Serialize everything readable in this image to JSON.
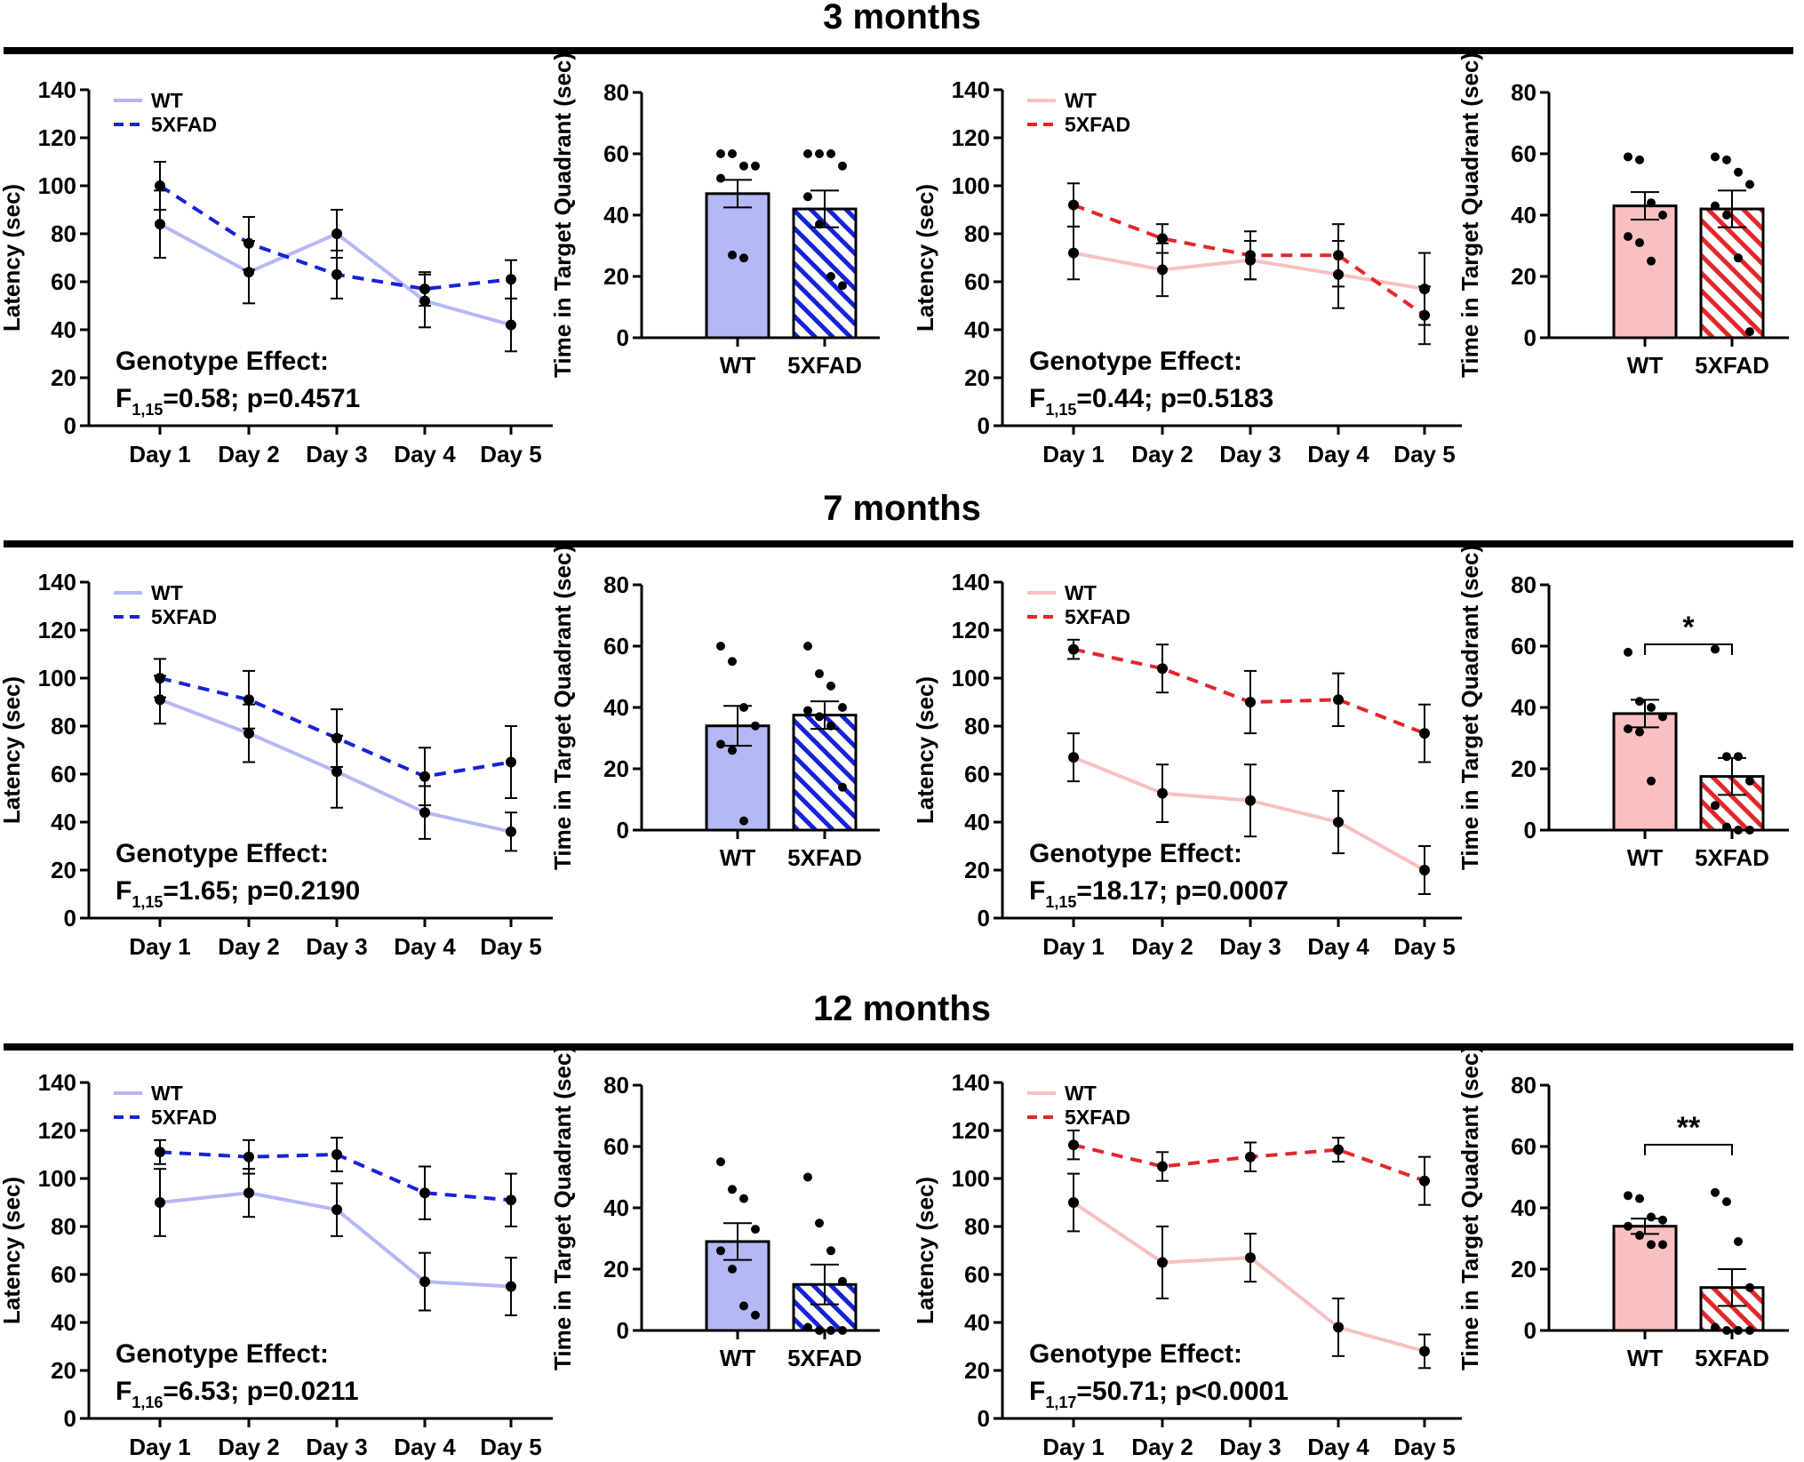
{
  "colors": {
    "blue_wt": "#b4b8f5",
    "blue_5xfad": "#1622d6",
    "red_wt": "#f8c0c0",
    "red_5xfad": "#e3262b",
    "point": "#000000"
  },
  "rows": [
    {
      "title": "3 months"
    },
    {
      "title": "7 months"
    },
    {
      "title": "12 months"
    }
  ],
  "chart_data": [
    {
      "type": "line",
      "row": 0,
      "col": 0,
      "group": "blue",
      "ylabel": "Latency (sec)",
      "ylim": [
        0,
        140
      ],
      "yticks": [
        "0",
        "20",
        "40",
        "60",
        "80",
        "100",
        "120",
        "140"
      ],
      "categories": [
        "Day 1",
        "Day 2",
        "Day 3",
        "Day 4",
        "Day 5"
      ],
      "series": [
        {
          "name": "WT",
          "values": [
            84,
            64,
            80,
            52,
            42
          ],
          "errors": [
            14,
            13,
            10,
            11,
            11
          ]
        },
        {
          "name": "5XFAD",
          "values": [
            100,
            76,
            63,
            57,
            61
          ],
          "errors": [
            10,
            11,
            10,
            7,
            8
          ]
        }
      ],
      "stat_line1": "Genotype Effect:",
      "stat_F": "F",
      "stat_sub": "1,15",
      "stat_rest": "=0.58; p=0.4571"
    },
    {
      "type": "bar",
      "row": 0,
      "col": 1,
      "group": "blue",
      "ylabel": "Time in Target Quadrant (sec)",
      "ylim": [
        0,
        80
      ],
      "yticks": [
        "0",
        "20",
        "40",
        "60",
        "80"
      ],
      "categories": [
        "WT",
        "5XFAD"
      ],
      "values": [
        47,
        42
      ],
      "errors": [
        4.5,
        6
      ],
      "points": [
        [
          60,
          60,
          56,
          56,
          52,
          27,
          26
        ],
        [
          60,
          60,
          60,
          56,
          46,
          37,
          20,
          17
        ]
      ],
      "significance": null
    },
    {
      "type": "line",
      "row": 0,
      "col": 2,
      "group": "red",
      "ylabel": "Latency (sec)",
      "ylim": [
        0,
        140
      ],
      "yticks": [
        "0",
        "20",
        "40",
        "60",
        "80",
        "100",
        "120",
        "140"
      ],
      "categories": [
        "Day 1",
        "Day 2",
        "Day 3",
        "Day 4",
        "Day 5"
      ],
      "series": [
        {
          "name": "WT",
          "values": [
            72,
            65,
            69,
            63,
            57
          ],
          "errors": [
            11,
            11,
            8,
            14,
            15
          ]
        },
        {
          "name": "5XFAD",
          "values": [
            92,
            78,
            71,
            71,
            46
          ],
          "errors": [
            9,
            6,
            10,
            13,
            12
          ]
        }
      ],
      "stat_line1": "Genotype Effect:",
      "stat_F": "F",
      "stat_sub": "1,15",
      "stat_rest": "=0.44; p=0.5183"
    },
    {
      "type": "bar",
      "row": 0,
      "col": 3,
      "group": "red",
      "ylabel": "Time in Target Quadrant (sec)",
      "ylim": [
        0,
        80
      ],
      "yticks": [
        "0",
        "20",
        "40",
        "60",
        "80"
      ],
      "categories": [
        "WT",
        "5XFAD"
      ],
      "values": [
        43,
        42
      ],
      "errors": [
        4.5,
        6
      ],
      "points": [
        [
          59,
          58,
          44,
          40,
          33,
          31,
          25
        ],
        [
          59,
          58,
          54,
          50,
          43,
          40,
          26,
          2
        ]
      ],
      "significance": null
    },
    {
      "type": "line",
      "row": 1,
      "col": 0,
      "group": "blue",
      "ylabel": "Latency (sec)",
      "ylim": [
        0,
        140
      ],
      "yticks": [
        "0",
        "20",
        "40",
        "60",
        "80",
        "100",
        "120",
        "140"
      ],
      "categories": [
        "Day 1",
        "Day 2",
        "Day 3",
        "Day 4",
        "Day 5"
      ],
      "series": [
        {
          "name": "WT",
          "values": [
            91,
            77,
            61,
            44,
            36
          ],
          "errors": [
            10,
            12,
            15,
            11,
            8
          ]
        },
        {
          "name": "5XFAD",
          "values": [
            100,
            91,
            75,
            59,
            65
          ],
          "errors": [
            8,
            12,
            12,
            12,
            15
          ]
        }
      ],
      "stat_line1": "Genotype Effect:",
      "stat_F": "F",
      "stat_sub": "1,15",
      "stat_rest": "=1.65; p=0.2190"
    },
    {
      "type": "bar",
      "row": 1,
      "col": 1,
      "group": "blue",
      "ylabel": "Time in Target Quadrant (sec)",
      "ylim": [
        0,
        80
      ],
      "yticks": [
        "0",
        "20",
        "40",
        "60",
        "80"
      ],
      "categories": [
        "WT",
        "5XFAD"
      ],
      "values": [
        34,
        37.5
      ],
      "errors": [
        6.5,
        4.5
      ],
      "points": [
        [
          60,
          55,
          40,
          34,
          28,
          26,
          3
        ],
        [
          60,
          51,
          47,
          40,
          39,
          37,
          34,
          14
        ]
      ],
      "significance": null
    },
    {
      "type": "line",
      "row": 1,
      "col": 2,
      "group": "red",
      "ylabel": "Latency (sec)",
      "ylim": [
        0,
        140
      ],
      "yticks": [
        "0",
        "20",
        "40",
        "60",
        "80",
        "100",
        "120",
        "140"
      ],
      "categories": [
        "Day 1",
        "Day 2",
        "Day 3",
        "Day 4",
        "Day 5"
      ],
      "series": [
        {
          "name": "WT",
          "values": [
            67,
            52,
            49,
            40,
            20
          ],
          "errors": [
            10,
            12,
            15,
            13,
            10
          ]
        },
        {
          "name": "5XFAD",
          "values": [
            112,
            104,
            90,
            91,
            77
          ],
          "errors": [
            4,
            10,
            13,
            11,
            12
          ]
        }
      ],
      "stat_line1": "Genotype Effect:",
      "stat_F": "F",
      "stat_sub": "1,15",
      "stat_rest": "=18.17; p=0.0007"
    },
    {
      "type": "bar",
      "row": 1,
      "col": 3,
      "group": "red",
      "ylabel": "Time in Target Quadrant (sec)",
      "ylim": [
        0,
        80
      ],
      "yticks": [
        "0",
        "20",
        "40",
        "60",
        "80"
      ],
      "categories": [
        "WT",
        "5XFAD"
      ],
      "values": [
        38,
        17.5
      ],
      "errors": [
        4.5,
        6
      ],
      "points": [
        [
          58,
          42,
          40,
          37,
          33,
          32,
          16
        ],
        [
          59,
          24,
          24,
          16,
          8,
          1,
          0,
          0
        ]
      ],
      "significance": "*"
    },
    {
      "type": "line",
      "row": 2,
      "col": 0,
      "group": "blue",
      "ylabel": "Latency (sec)",
      "ylim": [
        0,
        140
      ],
      "yticks": [
        "0",
        "20",
        "40",
        "60",
        "80",
        "100",
        "120",
        "140"
      ],
      "categories": [
        "Day 1",
        "Day 2",
        "Day 3",
        "Day 4",
        "Day 5"
      ],
      "series": [
        {
          "name": "WT",
          "values": [
            90,
            94,
            87,
            57,
            55
          ],
          "errors": [
            14,
            10,
            11,
            12,
            12
          ]
        },
        {
          "name": "5XFAD",
          "values": [
            111,
            109,
            110,
            94,
            91
          ],
          "errors": [
            5,
            7,
            7,
            11,
            11
          ]
        }
      ],
      "stat_line1": "Genotype Effect:",
      "stat_F": "F",
      "stat_sub": "1,16",
      "stat_rest": "=6.53; p=0.0211"
    },
    {
      "type": "bar",
      "row": 2,
      "col": 1,
      "group": "blue",
      "ylabel": "Time in Target Quadrant (sec)",
      "ylim": [
        0,
        80
      ],
      "yticks": [
        "0",
        "20",
        "40",
        "60",
        "80"
      ],
      "categories": [
        "WT",
        "5XFAD"
      ],
      "values": [
        29,
        15
      ],
      "errors": [
        6,
        6.5
      ],
      "points": [
        [
          55,
          46,
          43,
          33,
          26,
          20,
          8,
          5
        ],
        [
          50,
          35,
          26,
          16,
          1,
          0,
          0,
          0
        ]
      ],
      "significance": null
    },
    {
      "type": "line",
      "row": 2,
      "col": 2,
      "group": "red",
      "ylabel": "Latency (sec)",
      "ylim": [
        0,
        140
      ],
      "yticks": [
        "0",
        "20",
        "40",
        "60",
        "80",
        "100",
        "120",
        "140"
      ],
      "categories": [
        "Day 1",
        "Day 2",
        "Day 3",
        "Day 4",
        "Day 5"
      ],
      "series": [
        {
          "name": "WT",
          "values": [
            90,
            65,
            67,
            38,
            28
          ],
          "errors": [
            12,
            15,
            10,
            12,
            7
          ]
        },
        {
          "name": "5XFAD",
          "values": [
            114,
            105,
            109,
            112,
            99
          ],
          "errors": [
            6,
            6,
            6,
            5,
            10
          ]
        }
      ],
      "stat_line1": "Genotype Effect:",
      "stat_F": "F",
      "stat_sub": "1,17",
      "stat_rest": "=50.71; p<0.0001"
    },
    {
      "type": "bar",
      "row": 2,
      "col": 3,
      "group": "red",
      "ylabel": "Time in Target Quadrant (sec)",
      "ylim": [
        0,
        80
      ],
      "yticks": [
        "0",
        "20",
        "40",
        "60",
        "80"
      ],
      "categories": [
        "WT",
        "5XFAD"
      ],
      "values": [
        34,
        14
      ],
      "errors": [
        2.5,
        6
      ],
      "points": [
        [
          44,
          43,
          37,
          36,
          34,
          31,
          28,
          28
        ],
        [
          45,
          42,
          29,
          14,
          1,
          0,
          0,
          0
        ]
      ],
      "significance": "**"
    }
  ]
}
